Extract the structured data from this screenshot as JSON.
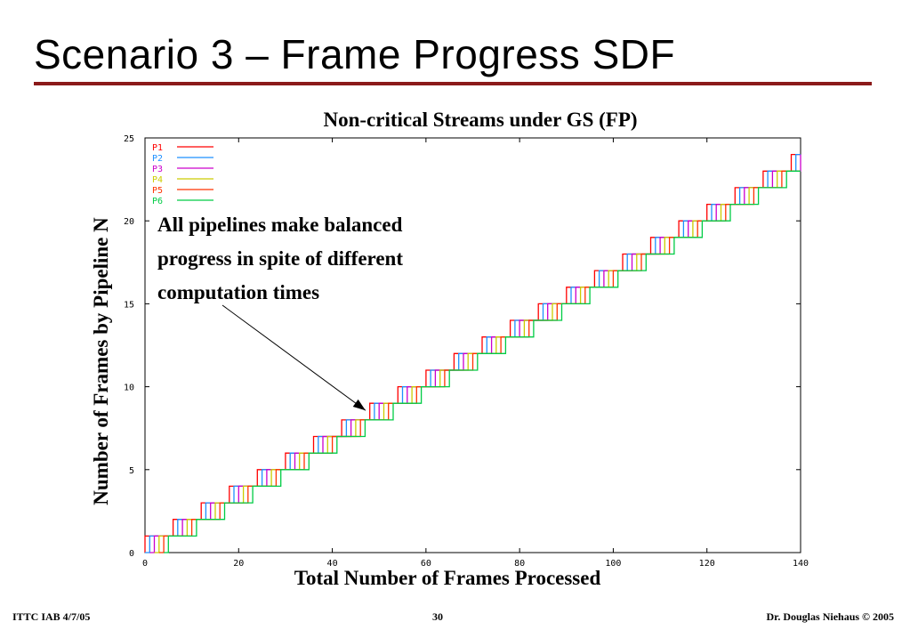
{
  "slide": {
    "title": "Scenario 3 – Frame Progress SDF"
  },
  "footer": {
    "left": "ITTC IAB  4/7/05",
    "page": "30",
    "right": "Dr. Douglas Niehaus © 2005"
  },
  "colors": {
    "title_rule": "#8b1a1a"
  },
  "chart_data": {
    "type": "line",
    "step": true,
    "title": "Non-critical Streams under GS (FP)",
    "xlabel": "Total Number of Frames Processed",
    "ylabel": "Number of Frames by Pipeline N",
    "xlim": [
      0,
      140
    ],
    "ylim": [
      0,
      25
    ],
    "xticks": [
      0,
      20,
      40,
      60,
      80,
      100,
      120,
      140
    ],
    "yticks": [
      0,
      5,
      10,
      15,
      20,
      25
    ],
    "legend_position": "top-left",
    "annotation": {
      "lines": [
        "All pipelines make balanced",
        "progress in spite of different",
        "computation times"
      ],
      "points_to": [
        49,
        9
      ]
    },
    "series": [
      {
        "name": "P1",
        "color": "#ff0000",
        "offset": 0
      },
      {
        "name": "P2",
        "color": "#1e90ff",
        "offset": 1
      },
      {
        "name": "P3",
        "color": "#cc00cc",
        "offset": 2
      },
      {
        "name": "P4",
        "color": "#cccc00",
        "offset": 3
      },
      {
        "name": "P5",
        "color": "#ff3300",
        "offset": 4
      },
      {
        "name": "P6",
        "color": "#00cc44",
        "offset": 5
      }
    ],
    "steps_per_frame": 6,
    "frames_max": 24
  }
}
